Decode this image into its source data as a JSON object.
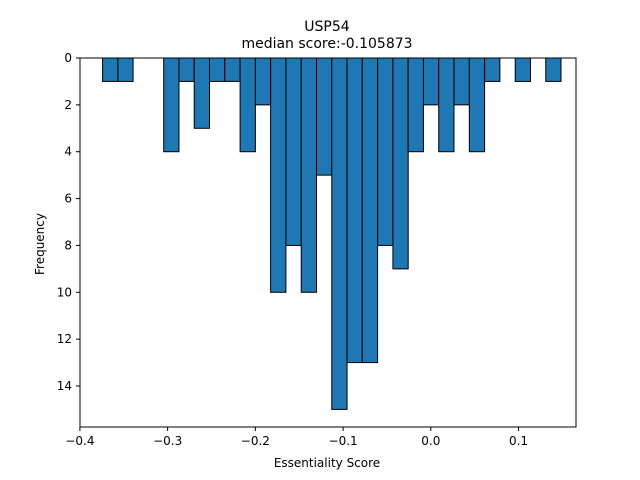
{
  "chart_data": {
    "type": "bar",
    "title": "USP54",
    "subtitle": "median score:-0.105873",
    "xlabel": "Essentiality Score",
    "ylabel": "Frequency",
    "xlim": [
      -0.3999,
      0.1655
    ],
    "ylim": [
      15.75,
      0
    ],
    "y_inverted": true,
    "bar_color": "#1f77b4",
    "edge_color": "#000000",
    "bin_width": 0.01742,
    "x_ticks": [
      -0.4,
      -0.3,
      -0.2,
      -0.1,
      0.0,
      0.1
    ],
    "x_tick_labels": [
      "−0.4",
      "−0.3",
      "−0.2",
      "−0.1",
      "0.0",
      "0.1"
    ],
    "y_ticks": [
      0,
      2,
      4,
      6,
      8,
      10,
      12,
      14
    ],
    "y_tick_labels": [
      "0",
      "2",
      "4",
      "6",
      "8",
      "10",
      "12",
      "14"
    ],
    "bins": [
      {
        "left": -0.3742,
        "count": 1
      },
      {
        "left": -0.3568,
        "count": 1
      },
      {
        "left": -0.3394,
        "count": 0
      },
      {
        "left": -0.322,
        "count": 0
      },
      {
        "left": -0.3045,
        "count": 4
      },
      {
        "left": -0.2871,
        "count": 1
      },
      {
        "left": -0.2697,
        "count": 3
      },
      {
        "left": -0.2523,
        "count": 1
      },
      {
        "left": -0.2348,
        "count": 1
      },
      {
        "left": -0.2174,
        "count": 4
      },
      {
        "left": -0.2,
        "count": 2
      },
      {
        "left": -0.1826,
        "count": 10
      },
      {
        "left": -0.1652,
        "count": 8
      },
      {
        "left": -0.1477,
        "count": 10
      },
      {
        "left": -0.1303,
        "count": 5
      },
      {
        "left": -0.1129,
        "count": 15
      },
      {
        "left": -0.0955,
        "count": 13
      },
      {
        "left": -0.0781,
        "count": 13
      },
      {
        "left": -0.0606,
        "count": 8
      },
      {
        "left": -0.0432,
        "count": 9
      },
      {
        "left": -0.0258,
        "count": 4
      },
      {
        "left": -0.0084,
        "count": 2
      },
      {
        "left": 0.009,
        "count": 4
      },
      {
        "left": 0.0265,
        "count": 2
      },
      {
        "left": 0.0439,
        "count": 4
      },
      {
        "left": 0.0613,
        "count": 1
      },
      {
        "left": 0.0787,
        "count": 0
      },
      {
        "left": 0.0962,
        "count": 1
      },
      {
        "left": 0.1136,
        "count": 0
      },
      {
        "left": 0.131,
        "count": 1
      }
    ]
  }
}
